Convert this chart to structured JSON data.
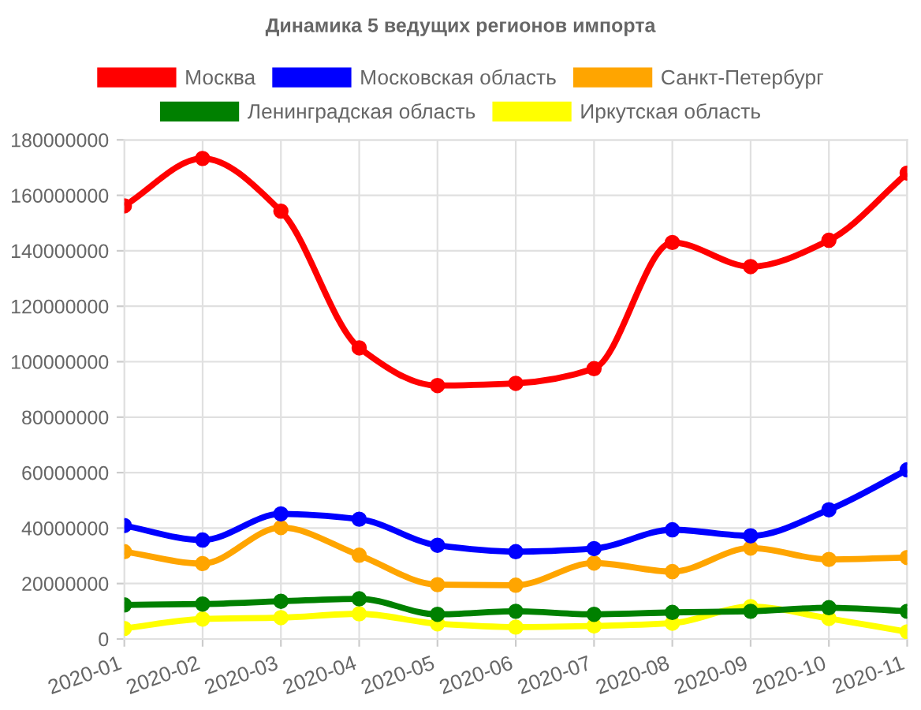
{
  "chart_data": {
    "type": "line",
    "title": "Динамика 5 ведущих регионов импорта",
    "categories": [
      "2020-01",
      "2020-02",
      "2020-03",
      "2020-04",
      "2020-05",
      "2020-06",
      "2020-07",
      "2020-08",
      "2020-09",
      "2020-10",
      "2020-11"
    ],
    "series": [
      {
        "name": "Москва",
        "color": "#ff0000",
        "values": [
          156200000,
          173300000,
          154300000,
          105000000,
          91400000,
          92200000,
          97500000,
          143000000,
          134300000,
          143800000,
          168000000
        ]
      },
      {
        "name": "Московская область",
        "color": "#0000ff",
        "values": [
          40900000,
          35700000,
          45100000,
          43200000,
          33800000,
          31500000,
          32600000,
          39400000,
          37200000,
          46600000,
          61000000
        ]
      },
      {
        "name": "Санкт-Петербург",
        "color": "#ffa500",
        "values": [
          31500000,
          27200000,
          40200000,
          30200000,
          19600000,
          19400000,
          27400000,
          24300000,
          32800000,
          28700000,
          29400000
        ]
      },
      {
        "name": "Ленинградская область",
        "color": "#008000",
        "values": [
          12300000,
          12600000,
          13600000,
          14500000,
          8900000,
          10000000,
          8900000,
          9600000,
          10000000,
          11300000,
          10000000
        ]
      },
      {
        "name": "Иркутская область",
        "color": "#ffff00",
        "values": [
          3800000,
          7200000,
          7700000,
          9100000,
          5500000,
          4300000,
          4700000,
          5700000,
          11700000,
          7400000,
          2600000
        ]
      }
    ],
    "ylim": [
      0,
      180000000
    ],
    "yticks": [
      0,
      20000000,
      40000000,
      60000000,
      80000000,
      100000000,
      120000000,
      140000000,
      160000000,
      180000000
    ],
    "grid": true,
    "legend": "top",
    "marker": "circle",
    "line_style": "solid"
  }
}
